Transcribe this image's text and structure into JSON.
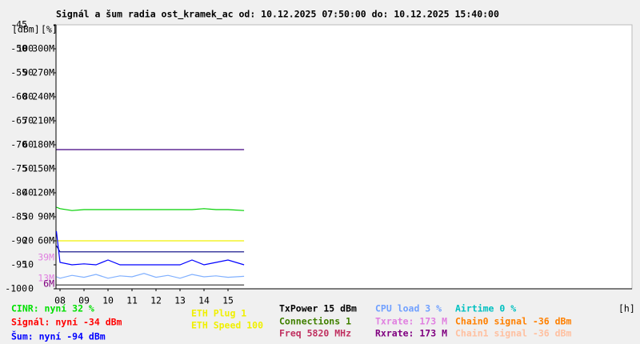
{
  "chart_data": {
    "type": "line",
    "title": "Signál a šum radia ost_kramek_ac od: 10.12.2025 07:50:00 do: 10.12.2025 15:40:00",
    "ylabel": "[dBm]",
    "y2label": "[%]",
    "xlabel": "[h]",
    "xlim": [
      7.8333,
      31.8333
    ],
    "xticks": [
      {
        "value": 8,
        "label": "08"
      },
      {
        "value": 9,
        "label": "09"
      },
      10,
      11,
      12,
      13,
      14,
      15
    ],
    "ylim": [
      -100,
      -45
    ],
    "yticks": [
      -45,
      -50,
      -55,
      -60,
      -65,
      -70,
      -75,
      -80,
      -85,
      -90,
      -95,
      -100
    ],
    "y2lim": [
      0,
      110
    ],
    "y2ticks": [
      100,
      90,
      80,
      70,
      60,
      50,
      40,
      30,
      20,
      10,
      0
    ],
    "y3lim": [
      0,
      330
    ],
    "y3ticks": [
      {
        "value": 300,
        "label": "300M"
      },
      {
        "value": 270,
        "label": "270M"
      },
      {
        "value": 240,
        "label": "240M"
      },
      {
        "value": 210,
        "label": "210M"
      },
      {
        "value": 180,
        "label": "180M"
      },
      {
        "value": 150,
        "label": "150M"
      },
      {
        "value": 120,
        "label": "120M"
      },
      {
        "value": 90,
        "label": "90M"
      },
      {
        "value": 60,
        "label": "60M"
      }
    ],
    "markers": [
      {
        "value": 39,
        "label": "39M",
        "color": "#e080e0"
      },
      {
        "value": 13,
        "label": "13M",
        "color": "#e080e0"
      },
      {
        "value": 6,
        "label": "6M",
        "color": "#800080"
      }
    ],
    "grid": false,
    "x": [
      7.85,
      8.0,
      8.5,
      9.0,
      9.5,
      10.0,
      10.5,
      11.0,
      11.5,
      12.0,
      12.5,
      13.0,
      13.5,
      14.0,
      14.5,
      15.0,
      15.67
    ],
    "series": [
      {
        "color": "#400080",
        "values": [
          -71,
          -71,
          -71,
          -71,
          -71,
          -71,
          -71,
          -71,
          -71,
          -71,
          -71,
          -71,
          -71,
          -71,
          -71,
          -71,
          -71
        ]
      },
      {
        "color": "#00d000",
        "values": [
          -83,
          -83.3,
          -83.7,
          -83.5,
          -83.5,
          -83.5,
          -83.5,
          -83.5,
          -83.5,
          -83.5,
          -83.5,
          -83.5,
          -83.5,
          -83.3,
          -83.5,
          -83.5,
          -83.7
        ]
      },
      {
        "color": "#f0f000",
        "values": [
          -90,
          -90,
          -90,
          -90,
          -90,
          -90,
          -90,
          -90,
          -90,
          -90,
          -90,
          -90,
          -90,
          -90,
          -90,
          -90,
          -90
        ]
      },
      {
        "color": "#000080",
        "values": [
          -91,
          -92.3,
          -92.3,
          -92.3,
          -92.3,
          -92.3,
          -92.3,
          -92.3,
          -92.3,
          -92.3,
          -92.3,
          -92.3,
          -92.3,
          -92.3,
          -92.3,
          -92.3,
          -92.3
        ]
      },
      {
        "color": "#0000ff",
        "values": [
          -88,
          -94.5,
          -95,
          -94.8,
          -95,
          -94,
          -95,
          -95,
          -95,
          -95,
          -95,
          -95,
          -94,
          -95,
          -94.5,
          -94,
          -95
        ]
      },
      {
        "color": "#80b0ff",
        "values": [
          -97.5,
          -97.8,
          -97.2,
          -97.6,
          -97,
          -97.8,
          -97.3,
          -97.5,
          -96.8,
          -97.6,
          -97.2,
          -97.8,
          -97,
          -97.5,
          -97.3,
          -97.6,
          -97.4
        ]
      },
      {
        "color": "#303030",
        "values": [
          -99.2,
          -99.2,
          -99.2,
          -99.2,
          -99.2,
          -99.2,
          -99.2,
          -99.2,
          -99.2,
          -99.2,
          -99.2,
          -99.2,
          -99.2,
          -99.2,
          -99.2,
          -99.2,
          -99.2
        ]
      }
    ],
    "legend": [
      [
        {
          "text": "CINR: nyní 32 %",
          "color": "#00e000"
        },
        {
          "text": "Signál: nyní -34 dBm",
          "color": "#ff0000"
        },
        {
          "text": "Šum: nyní -94 dBm",
          "color": "#0000ff"
        }
      ],
      [
        {
          "text": "ETH Plug 1",
          "color": "#f0f000"
        },
        {
          "text": "ETH Speed 100",
          "color": "#f0f000"
        }
      ],
      [
        {
          "text": "TxPower 15 dBm",
          "color": "#000000"
        },
        {
          "text": "Connections 1",
          "color": "#408000"
        },
        {
          "text": "Freq 5820 MHz",
          "color": "#c03060"
        }
      ],
      [
        {
          "text": "CPU load 3 %",
          "color": "#70a0ff"
        },
        {
          "text": "Txrate: 173 M",
          "color": "#e080e0"
        },
        {
          "text": "Rxrate: 173 M",
          "color": "#800080"
        }
      ],
      [
        {
          "text": "Airtime 0 %",
          "color": "#00c0c0"
        },
        {
          "text": "Chain0 signal -36 dBm",
          "color": "#ff8000"
        },
        {
          "text": "Chain1 signal -36 dBm",
          "color": "#ffc0a0"
        }
      ]
    ]
  }
}
